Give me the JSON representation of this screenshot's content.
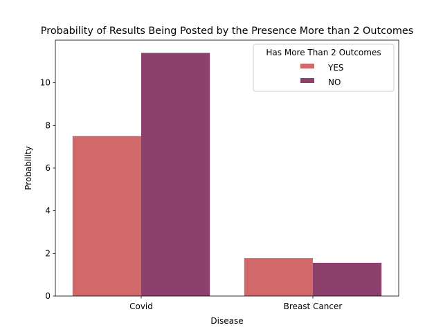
{
  "chart_data": {
    "type": "bar",
    "title": "Probability of Results Being Posted by the Presence More than 2 Outcomes",
    "xlabel": "Disease",
    "ylabel": "Probability",
    "categories": [
      "Covid",
      "Breast Cancer"
    ],
    "series": [
      {
        "name": "YES",
        "values": [
          7.5,
          1.78
        ],
        "color": "#d1696a"
      },
      {
        "name": "NO",
        "values": [
          11.4,
          1.56
        ],
        "color": "#8c416d"
      }
    ],
    "ylim": [
      0,
      12
    ],
    "yticks": [
      "0",
      "2",
      "4",
      "6",
      "8",
      "10"
    ],
    "grid": false,
    "legend": {
      "title": "Has More Than 2 Outcomes",
      "placement": "top-right"
    }
  }
}
